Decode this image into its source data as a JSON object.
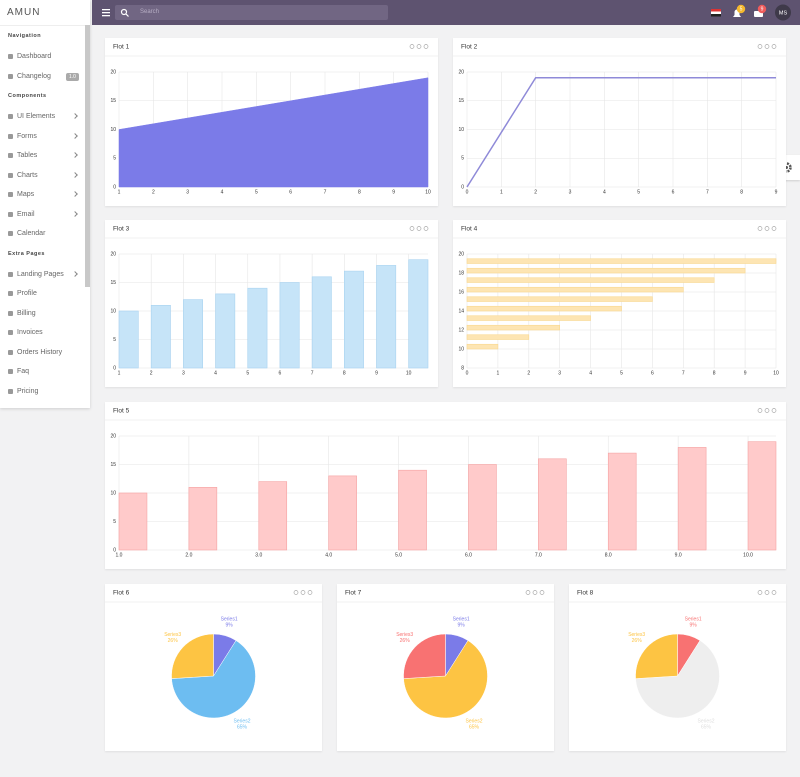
{
  "sidebar": {
    "brand": "AMUN",
    "changelog_badge": "1.0",
    "sections": [
      {
        "title": "Navigation",
        "items": [
          {
            "label": "Dashboard"
          },
          {
            "label": "Changelog"
          }
        ]
      },
      {
        "title": "Components",
        "items": [
          {
            "label": "UI Elements",
            "expandable": true
          },
          {
            "label": "Forms",
            "expandable": true
          },
          {
            "label": "Tables",
            "expandable": true
          },
          {
            "label": "Charts",
            "expandable": true
          },
          {
            "label": "Maps",
            "expandable": true
          },
          {
            "label": "Email",
            "expandable": true
          },
          {
            "label": "Calendar"
          }
        ]
      },
      {
        "title": "Extra Pages",
        "items": [
          {
            "label": "Landing Pages",
            "expandable": true
          },
          {
            "label": "Profile"
          },
          {
            "label": "Billing"
          },
          {
            "label": "Invoices"
          },
          {
            "label": "Orders History"
          },
          {
            "label": "Faq"
          },
          {
            "label": "Pricing"
          }
        ]
      }
    ]
  },
  "topbar": {
    "search_placeholder": "Search",
    "notifications": "5",
    "messages": "9",
    "avatar": "MS"
  },
  "chart_data": [
    {
      "type": "area",
      "title": "Flot 1",
      "x": [
        1,
        2,
        3,
        4,
        5,
        6,
        7,
        8,
        9,
        10
      ],
      "values": [
        10,
        11,
        12,
        13,
        14,
        15,
        16,
        17,
        18,
        19
      ],
      "color": "#7b7be8",
      "xlim": [
        1,
        10
      ],
      "ylim": [
        0,
        20
      ],
      "xticks": [
        1,
        2,
        3,
        4,
        5,
        6,
        7,
        8,
        9,
        10
      ],
      "yticks": [
        0,
        5,
        10,
        15,
        20
      ],
      "grid": true
    },
    {
      "type": "line",
      "title": "Flot 2",
      "x": [
        0,
        2,
        3,
        4,
        5,
        6,
        7,
        8,
        9
      ],
      "values": [
        0,
        19,
        19,
        19,
        19,
        19,
        19,
        19,
        19
      ],
      "color": "#8f8ad8",
      "xlim": [
        0,
        9
      ],
      "ylim": [
        0,
        20
      ],
      "xticks": [
        0,
        1,
        2,
        3,
        4,
        5,
        6,
        7,
        8,
        9
      ],
      "yticks": [
        0,
        5,
        10,
        15,
        20
      ],
      "grid": true
    },
    {
      "type": "bar",
      "title": "Flot 3",
      "x": [
        1,
        2,
        3,
        4,
        5,
        6,
        7,
        8,
        9,
        10
      ],
      "values": [
        10,
        11,
        12,
        13,
        14,
        15,
        16,
        17,
        18,
        19
      ],
      "color": "#c6e4f8",
      "border_color": "#a9d3f0",
      "xlim": [
        1,
        10.6
      ],
      "ylim": [
        0,
        20
      ],
      "xticks": [
        1,
        2,
        3,
        4,
        5,
        6,
        7,
        8,
        9,
        10
      ],
      "yticks": [
        0,
        5,
        10,
        15,
        20
      ],
      "grid": true
    },
    {
      "type": "hbar",
      "title": "Flot 4",
      "y": [
        10,
        11,
        12,
        13,
        14,
        15,
        16,
        17,
        18,
        19
      ],
      "values": [
        1,
        2,
        3,
        4,
        5,
        6,
        7,
        8,
        9,
        10
      ],
      "color": "#fde5b3",
      "border_color": "#f9d88f",
      "xlim": [
        0,
        10
      ],
      "ylim": [
        8,
        20
      ],
      "xticks": [
        0,
        1,
        2,
        3,
        4,
        5,
        6,
        7,
        8,
        9,
        10
      ],
      "yticks": [
        8,
        10,
        12,
        14,
        16,
        18,
        20
      ],
      "grid": true
    },
    {
      "type": "bar",
      "title": "Flot 5",
      "x": [
        1,
        2,
        3,
        4,
        5,
        6,
        7,
        8,
        9,
        10
      ],
      "values": [
        10,
        11,
        12,
        13,
        14,
        15,
        16,
        17,
        18,
        19
      ],
      "color": "#ffcaca",
      "border_color": "#f5a3a3",
      "xlim": [
        1,
        10.4
      ],
      "ylim": [
        0,
        20
      ],
      "xticks": [
        {
          "value": 1,
          "label": "1.0"
        },
        {
          "value": 2,
          "label": "2.0"
        },
        {
          "value": 3,
          "label": "3.0"
        },
        {
          "value": 4,
          "label": "4.0"
        },
        {
          "value": 5,
          "label": "5.0"
        },
        {
          "value": 6,
          "label": "6.0"
        },
        {
          "value": 7,
          "label": "7.0"
        },
        {
          "value": 8,
          "label": "8.0"
        },
        {
          "value": 9,
          "label": "9.0"
        },
        {
          "value": 10,
          "label": "10.0"
        }
      ],
      "yticks": [
        0,
        5,
        10,
        15,
        20
      ],
      "grid": true
    },
    {
      "type": "pie",
      "title": "Flot 6",
      "categories": [
        "Series1",
        "Series2",
        "Series3"
      ],
      "values": [
        9,
        65,
        26
      ],
      "value_labels": [
        "9%",
        "65%",
        "26%"
      ],
      "colors": [
        "#7b7be8",
        "#6dbdf1",
        "#fdc443"
      ]
    },
    {
      "type": "pie",
      "title": "Flot 7",
      "categories": [
        "Series1",
        "Series2",
        "Series3"
      ],
      "values": [
        9,
        65,
        26
      ],
      "value_labels": [
        "9%",
        "65%",
        "26%"
      ],
      "colors": [
        "#7b7be8",
        "#fdc443",
        "#f87272"
      ]
    },
    {
      "type": "pie",
      "title": "Flot 8",
      "categories": [
        "Series1",
        "Series2",
        "Series3"
      ],
      "values": [
        9,
        65,
        26
      ],
      "value_labels": [
        "9%",
        "65%",
        "26%"
      ],
      "colors": [
        "#f87272",
        "#eeeeee",
        "#fdc443"
      ]
    }
  ]
}
